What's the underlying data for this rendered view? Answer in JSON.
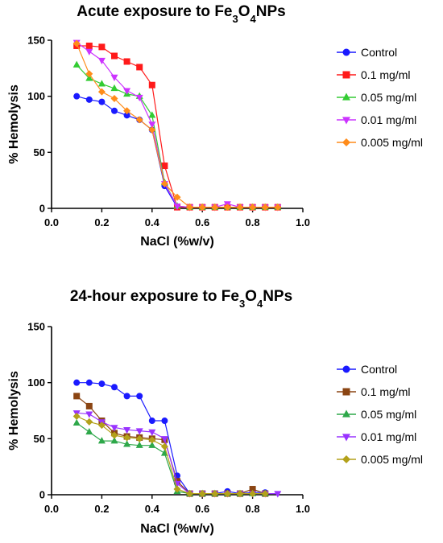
{
  "chart_data": [
    {
      "type": "line",
      "title_parts": [
        "Acute exposure to Fe",
        "3",
        "O",
        "4",
        "NPs"
      ],
      "xlabel": "NaCl (%w/v)",
      "ylabel": "% Hemolysis",
      "xlim": [
        0.0,
        1.0
      ],
      "ylim": [
        0,
        150
      ],
      "xticks": [
        "0.0",
        "0.2",
        "0.4",
        "0.6",
        "0.8",
        "1.0"
      ],
      "yticks": [
        "0",
        "50",
        "100",
        "150"
      ],
      "legend_position": "right",
      "series": [
        {
          "name": "Control",
          "color": "#1a1aff",
          "marker": "circle",
          "x": [
            0.1,
            0.15,
            0.2,
            0.25,
            0.3,
            0.35,
            0.4,
            0.45,
            0.5,
            0.55,
            0.6,
            0.65,
            0.7,
            0.75,
            0.8,
            0.85,
            0.9
          ],
          "y": [
            100,
            97,
            95,
            87,
            83,
            79,
            70,
            20,
            1,
            1,
            1,
            1,
            1,
            1,
            1,
            1,
            1
          ]
        },
        {
          "name": "0.1 mg/ml",
          "color": "#ff1a1a",
          "marker": "square",
          "x": [
            0.1,
            0.15,
            0.2,
            0.25,
            0.3,
            0.35,
            0.4,
            0.45,
            0.5,
            0.55,
            0.6,
            0.65,
            0.7,
            0.75,
            0.8,
            0.85,
            0.9
          ],
          "y": [
            145,
            145,
            144,
            136,
            131,
            126,
            110,
            38,
            1,
            1,
            1,
            1,
            1,
            1,
            1,
            1,
            1
          ]
        },
        {
          "name": "0.05 mg/ml",
          "color": "#33cc33",
          "marker": "triangle-up",
          "x": [
            0.1,
            0.15,
            0.2,
            0.25,
            0.3,
            0.35,
            0.4,
            0.45,
            0.5,
            0.55,
            0.6,
            0.65,
            0.7,
            0.75,
            0.8,
            0.85,
            0.9
          ],
          "y": [
            128,
            116,
            111,
            107,
            102,
            100,
            83,
            23,
            2,
            1,
            1,
            1,
            1,
            1,
            1,
            1,
            1
          ]
        },
        {
          "name": "0.01 mg/ml",
          "color": "#cc33ff",
          "marker": "triangle-down",
          "x": [
            0.1,
            0.15,
            0.2,
            0.25,
            0.3,
            0.35,
            0.4,
            0.45,
            0.5,
            0.55,
            0.6,
            0.65,
            0.7,
            0.75,
            0.8,
            0.85,
            0.9
          ],
          "y": [
            148,
            140,
            132,
            117,
            105,
            99,
            75,
            22,
            2,
            1,
            1,
            1,
            4,
            1,
            1,
            1,
            1
          ]
        },
        {
          "name": "0.005 mg/ml",
          "color": "#ff8c1a",
          "marker": "diamond",
          "x": [
            0.1,
            0.15,
            0.2,
            0.25,
            0.3,
            0.35,
            0.4,
            0.45,
            0.5,
            0.55,
            0.6,
            0.65,
            0.7,
            0.75,
            0.8,
            0.85,
            0.9
          ],
          "y": [
            147,
            120,
            104,
            98,
            87,
            79,
            70,
            22,
            10,
            1,
            1,
            1,
            1,
            1,
            1,
            1,
            1
          ]
        }
      ]
    },
    {
      "type": "line",
      "title_parts": [
        "24-hour exposure to Fe",
        "3",
        "O",
        "4",
        "NPs"
      ],
      "xlabel": "NaCl (%w/v)",
      "ylabel": "% Hemolysis",
      "xlim": [
        0.0,
        1.0
      ],
      "ylim": [
        0,
        150
      ],
      "xticks": [
        "0.0",
        "0.2",
        "0.4",
        "0.6",
        "0.8",
        "1.0"
      ],
      "yticks": [
        "0",
        "50",
        "100",
        "150"
      ],
      "legend_position": "right",
      "series": [
        {
          "name": "Control",
          "color": "#1a1aff",
          "marker": "circle",
          "x": [
            0.1,
            0.15,
            0.2,
            0.25,
            0.3,
            0.35,
            0.4,
            0.45,
            0.5,
            0.55,
            0.6,
            0.65,
            0.7,
            0.75,
            0.8,
            0.85
          ],
          "y": [
            100,
            100,
            99,
            96,
            88,
            88,
            66,
            66,
            17,
            1,
            1,
            1,
            3,
            1,
            2,
            2
          ]
        },
        {
          "name": "0.1 mg/ml",
          "color": "#8b4513",
          "marker": "square",
          "x": [
            0.1,
            0.15,
            0.2,
            0.25,
            0.3,
            0.35,
            0.4,
            0.45,
            0.5,
            0.55,
            0.6,
            0.65,
            0.7,
            0.75,
            0.8,
            0.85
          ],
          "y": [
            88,
            79,
            66,
            55,
            52,
            51,
            50,
            49,
            12,
            1,
            1,
            1,
            1,
            1,
            5,
            1
          ]
        },
        {
          "name": "0.05 mg/ml",
          "color": "#2ea84a",
          "marker": "triangle-up",
          "x": [
            0.1,
            0.15,
            0.2,
            0.25,
            0.3,
            0.35,
            0.4,
            0.45,
            0.5,
            0.55,
            0.6,
            0.65,
            0.7,
            0.75,
            0.8,
            0.85
          ],
          "y": [
            64,
            56,
            48,
            48,
            45,
            44,
            44,
            37,
            3,
            1,
            1,
            1,
            1,
            1,
            1,
            1
          ]
        },
        {
          "name": "0.01 mg/ml",
          "color": "#9933ff",
          "marker": "triangle-down",
          "x": [
            0.1,
            0.15,
            0.2,
            0.25,
            0.3,
            0.35,
            0.4,
            0.45,
            0.5,
            0.55,
            0.6,
            0.65,
            0.7,
            0.75,
            0.8,
            0.85,
            0.9
          ],
          "y": [
            73,
            72,
            65,
            60,
            58,
            57,
            56,
            50,
            10,
            1,
            1,
            1,
            1,
            1,
            1,
            1,
            1
          ]
        },
        {
          "name": "0.005 mg/ml",
          "color": "#b3a11a",
          "marker": "diamond",
          "x": [
            0.1,
            0.15,
            0.2,
            0.25,
            0.3,
            0.35,
            0.4,
            0.45,
            0.5,
            0.55,
            0.6,
            0.65,
            0.7,
            0.75,
            0.8,
            0.85
          ],
          "y": [
            70,
            65,
            62,
            53,
            51,
            50,
            49,
            43,
            5,
            1,
            1,
            1,
            1,
            1,
            1,
            1
          ]
        }
      ]
    }
  ]
}
